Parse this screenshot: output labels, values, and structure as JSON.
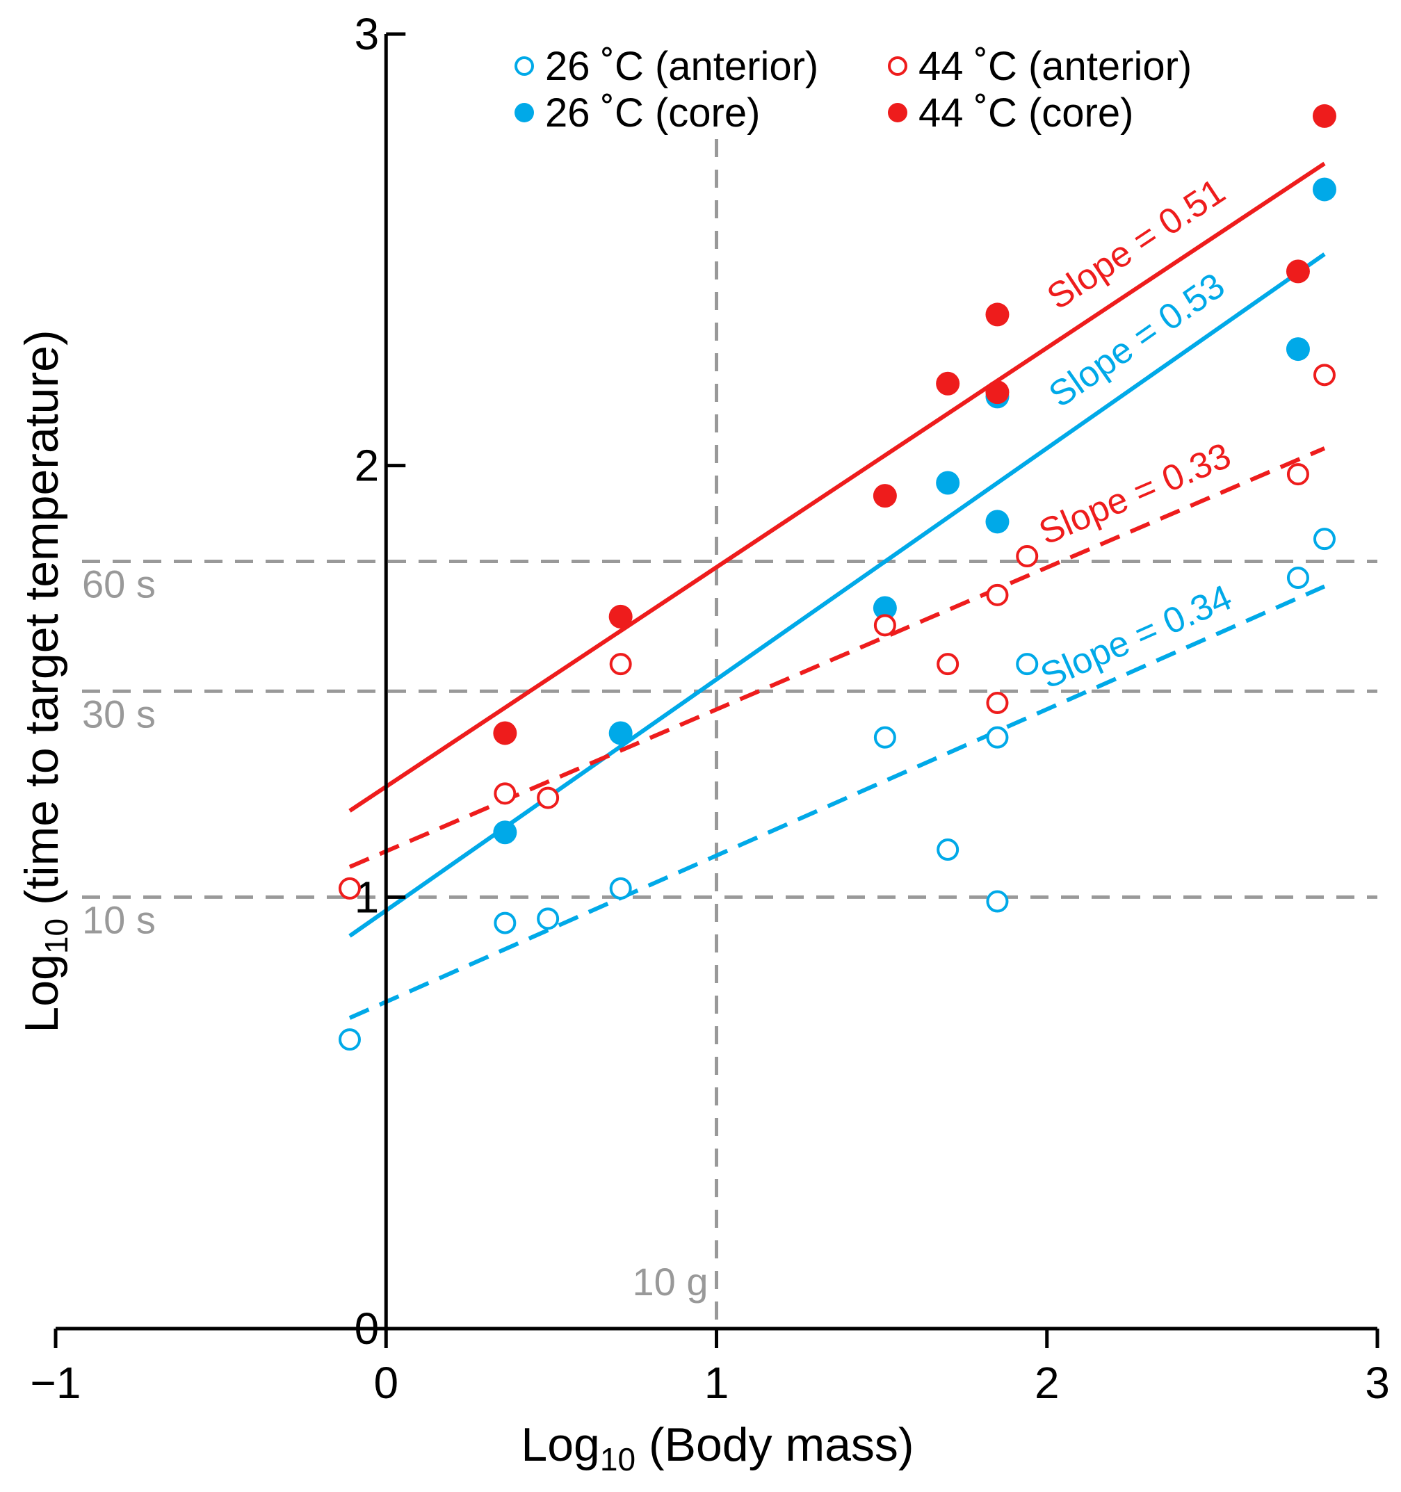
{
  "chart_data": {
    "type": "scatter",
    "title": "",
    "xlabel": "Log10 (Body mass)",
    "ylabel": "Log10 (time to target temperature)",
    "xlim": [
      -1,
      3
    ],
    "ylim": [
      0,
      3
    ],
    "x_ticks": [
      -1,
      0,
      1,
      2,
      3
    ],
    "x_tick_labels": [
      "−1",
      "0",
      "1",
      "2",
      "3"
    ],
    "y_ticks": [
      0,
      1,
      2,
      3
    ],
    "y_tick_labels": [
      "0",
      "1",
      "2",
      "3"
    ],
    "grid": false,
    "legend_position": "top",
    "colors": {
      "cool": "#00a9e8",
      "hot": "#ee1c1c",
      "axis": "#000000",
      "reference": "#999999"
    },
    "reference_lines": [
      {
        "orientation": "horizontal",
        "value": 1.778,
        "label": "60 s"
      },
      {
        "orientation": "horizontal",
        "value": 1.477,
        "label": "30 s"
      },
      {
        "orientation": "horizontal",
        "value": 1.0,
        "label": "10 s"
      },
      {
        "orientation": "vertical",
        "value": 1.0,
        "label": "10 g"
      }
    ],
    "series": [
      {
        "name": "26 ˚C (anterior)",
        "color": "#00a9e8",
        "filled": false,
        "points": [
          [
            -0.11,
            0.67
          ],
          [
            0.36,
            0.94
          ],
          [
            0.49,
            0.95
          ],
          [
            0.71,
            1.02
          ],
          [
            1.51,
            1.37
          ],
          [
            1.7,
            1.11
          ],
          [
            1.85,
            0.99
          ],
          [
            1.85,
            1.37
          ],
          [
            1.94,
            1.54
          ],
          [
            2.76,
            1.74
          ],
          [
            2.84,
            1.83
          ]
        ],
        "fit": {
          "x": [
            -0.11,
            2.84
          ],
          "y": [
            0.72,
            1.72
          ],
          "slope_label": "Slope = 0.34",
          "dashed": true
        }
      },
      {
        "name": "26 ˚C (core)",
        "color": "#00a9e8",
        "filled": true,
        "points": [
          [
            0.36,
            1.15
          ],
          [
            0.71,
            1.38
          ],
          [
            1.51,
            1.67
          ],
          [
            1.7,
            1.96
          ],
          [
            1.85,
            1.87
          ],
          [
            1.85,
            2.16
          ],
          [
            2.76,
            2.27
          ],
          [
            2.84,
            2.64
          ]
        ],
        "fit": {
          "x": [
            -0.11,
            2.84
          ],
          "y": [
            0.91,
            2.49
          ],
          "slope_label": "Slope = 0.53",
          "dashed": false
        }
      },
      {
        "name": "44 ˚C (anterior)",
        "color": "#ee1c1c",
        "filled": false,
        "points": [
          [
            -0.11,
            1.02
          ],
          [
            0.36,
            1.24
          ],
          [
            0.49,
            1.23
          ],
          [
            0.71,
            1.54
          ],
          [
            1.51,
            1.63
          ],
          [
            1.7,
            1.54
          ],
          [
            1.85,
            1.45
          ],
          [
            1.85,
            1.7
          ],
          [
            1.94,
            1.79
          ],
          [
            2.76,
            1.98
          ],
          [
            2.84,
            2.21
          ]
        ],
        "fit": {
          "x": [
            -0.11,
            2.84
          ],
          "y": [
            1.07,
            2.04
          ],
          "slope_label": "Slope = 0.33",
          "dashed": true
        }
      },
      {
        "name": "44 ˚C (core)",
        "color": "#ee1c1c",
        "filled": true,
        "points": [
          [
            0.36,
            1.38
          ],
          [
            0.71,
            1.65
          ],
          [
            1.51,
            1.93
          ],
          [
            1.7,
            2.19
          ],
          [
            1.85,
            2.17
          ],
          [
            1.85,
            2.35
          ],
          [
            2.76,
            2.45
          ],
          [
            2.84,
            2.81
          ]
        ],
        "fit": {
          "x": [
            -0.11,
            2.84
          ],
          "y": [
            1.2,
            2.7
          ],
          "slope_label": "Slope = 0.51",
          "dashed": false
        }
      }
    ]
  }
}
